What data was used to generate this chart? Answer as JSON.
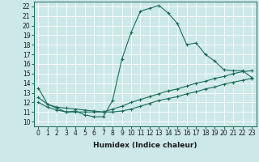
{
  "xlabel": "Humidex (Indice chaleur)",
  "xlim": [
    -0.5,
    23.5
  ],
  "ylim": [
    9.5,
    22.5
  ],
  "xticks": [
    0,
    1,
    2,
    3,
    4,
    5,
    6,
    7,
    8,
    9,
    10,
    11,
    12,
    13,
    14,
    15,
    16,
    17,
    18,
    19,
    20,
    21,
    22,
    23
  ],
  "yticks": [
    10,
    11,
    12,
    13,
    14,
    15,
    16,
    17,
    18,
    19,
    20,
    21,
    22
  ],
  "background_color": "#cde8e8",
  "grid_color": "#b0d8d8",
  "line_color": "#1a6b5a",
  "line1_x": [
    0,
    1,
    2,
    3,
    4,
    5,
    6,
    7,
    8,
    9,
    10,
    11,
    12,
    13,
    14,
    15,
    16,
    17,
    18,
    19,
    20,
    21,
    22,
    23
  ],
  "line1_y": [
    13.5,
    11.8,
    11.4,
    11.0,
    11.1,
    10.7,
    10.5,
    10.5,
    12.2,
    16.5,
    19.3,
    21.5,
    21.8,
    22.1,
    21.3,
    20.2,
    18.0,
    18.2,
    17.0,
    16.3,
    15.4,
    15.3,
    15.3,
    14.6
  ],
  "line2_x": [
    0,
    1,
    2,
    3,
    4,
    5,
    6,
    7,
    8,
    9,
    10,
    11,
    12,
    13,
    14,
    15,
    16,
    17,
    18,
    19,
    20,
    21,
    22,
    23
  ],
  "line2_y": [
    12.5,
    11.8,
    11.5,
    11.4,
    11.3,
    11.2,
    11.1,
    11.0,
    11.3,
    11.6,
    12.0,
    12.3,
    12.6,
    12.9,
    13.2,
    13.4,
    13.7,
    14.0,
    14.2,
    14.5,
    14.7,
    15.0,
    15.2,
    15.3
  ],
  "line3_x": [
    0,
    1,
    2,
    3,
    4,
    5,
    6,
    7,
    8,
    9,
    10,
    11,
    12,
    13,
    14,
    15,
    16,
    17,
    18,
    19,
    20,
    21,
    22,
    23
  ],
  "line3_y": [
    12.0,
    11.5,
    11.2,
    11.0,
    11.0,
    11.0,
    11.0,
    11.0,
    11.0,
    11.1,
    11.3,
    11.6,
    11.9,
    12.2,
    12.4,
    12.6,
    12.9,
    13.1,
    13.4,
    13.6,
    13.9,
    14.1,
    14.3,
    14.5
  ],
  "tick_fontsize": 5.5,
  "label_fontsize": 6.5
}
